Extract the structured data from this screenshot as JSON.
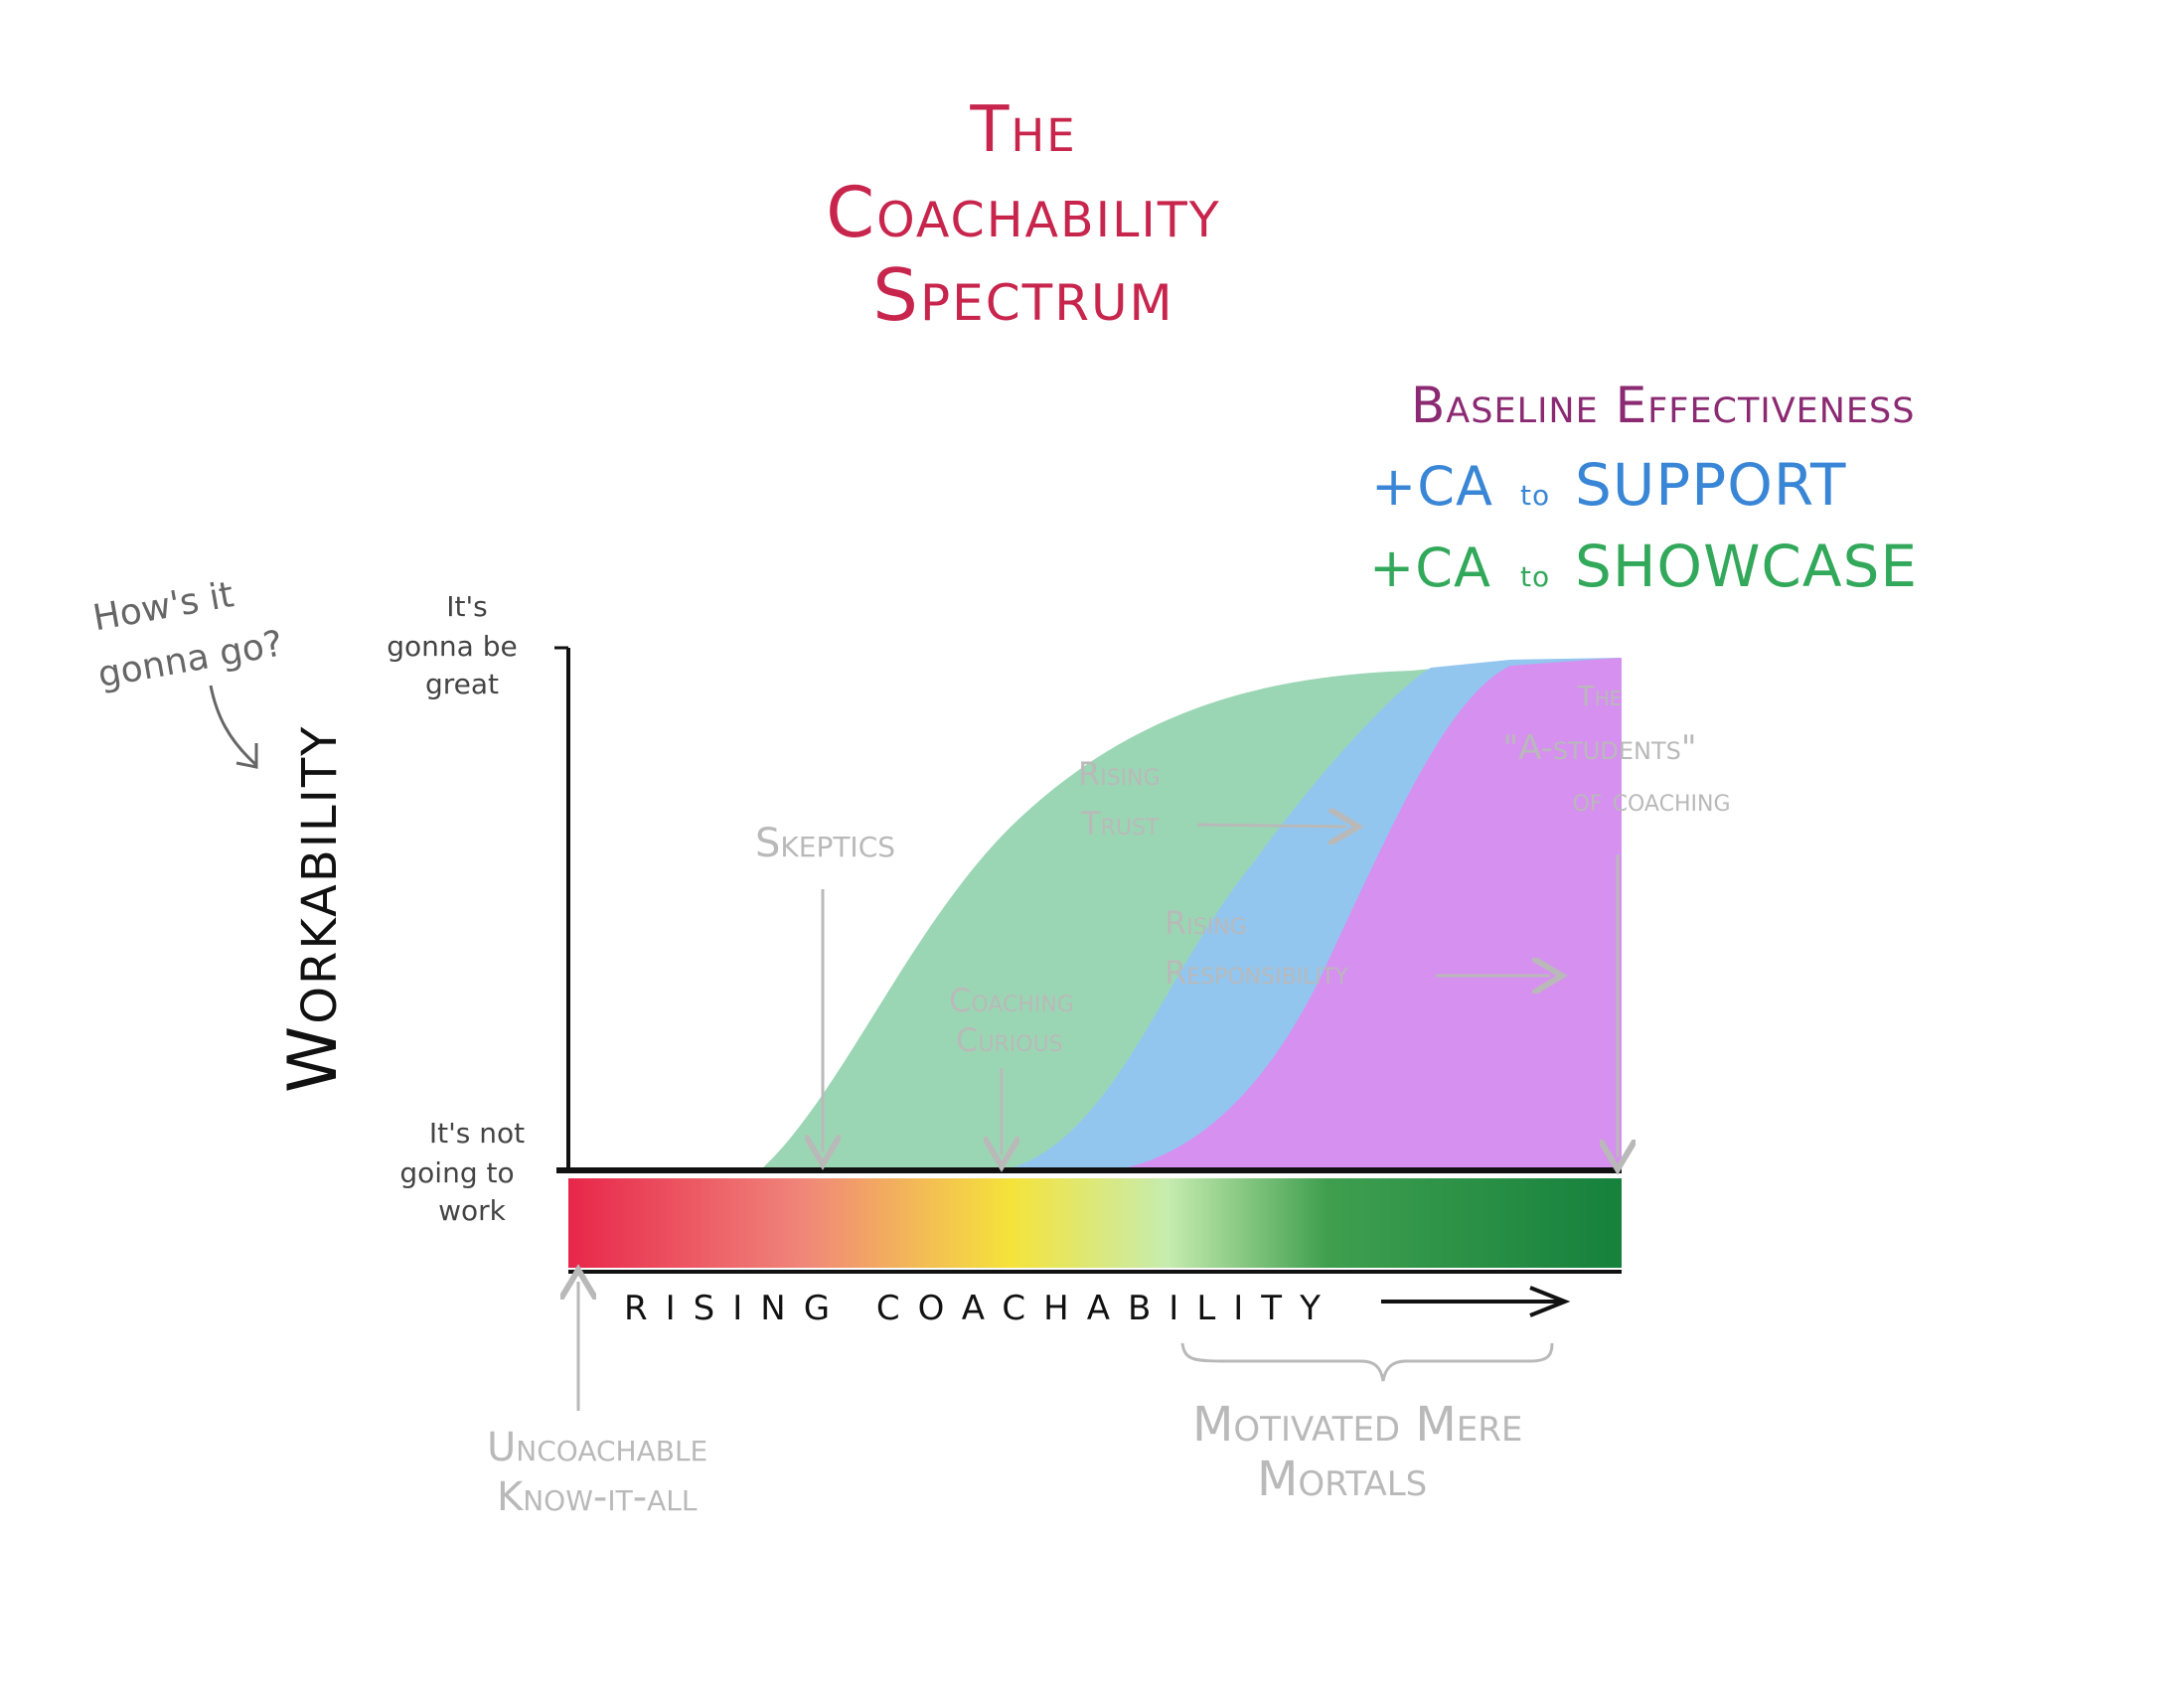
{
  "title": [
    "The",
    "Coachability",
    "Spectrum"
  ],
  "legend": {
    "baseline": "Baseline Effectiveness",
    "support_prefix": "+CA",
    "support_to": "to",
    "support_word": "SUPPORT",
    "showcase_prefix": "+CA",
    "showcase_to": "to",
    "showcase_word": "SHOWCASE",
    "colors": {
      "baseline": "#9bd6b4",
      "support": "#92c6ef",
      "showcase": "#d690f0"
    }
  },
  "question": [
    "How's it",
    "gonna go?"
  ],
  "y_axis": {
    "label": "Workability",
    "top_label": [
      "It's",
      "gonna be",
      "great"
    ],
    "bottom_label": [
      "It's not",
      "going to",
      "work"
    ]
  },
  "x_axis": {
    "label": "RISING COACHABILITY"
  },
  "annotations": {
    "skeptics": "Skeptics",
    "coaching_curious": [
      "Coaching",
      "Curious"
    ],
    "rising_trust": [
      "Rising",
      "Trust"
    ],
    "rising_responsibility": [
      "Rising",
      "Responsibility"
    ],
    "a_students": [
      "The",
      "\"A-students\"",
      "of coaching"
    ],
    "uncoachable": [
      "Uncoachable",
      "Know-it-all"
    ],
    "motivated": [
      "Motivated Mere",
      "Mortals"
    ]
  },
  "spectrum_colors": [
    "#e8264a",
    "#f0857a",
    "#f5e33a",
    "#c6ecb0",
    "#3f9f4f",
    "#15813c"
  ]
}
